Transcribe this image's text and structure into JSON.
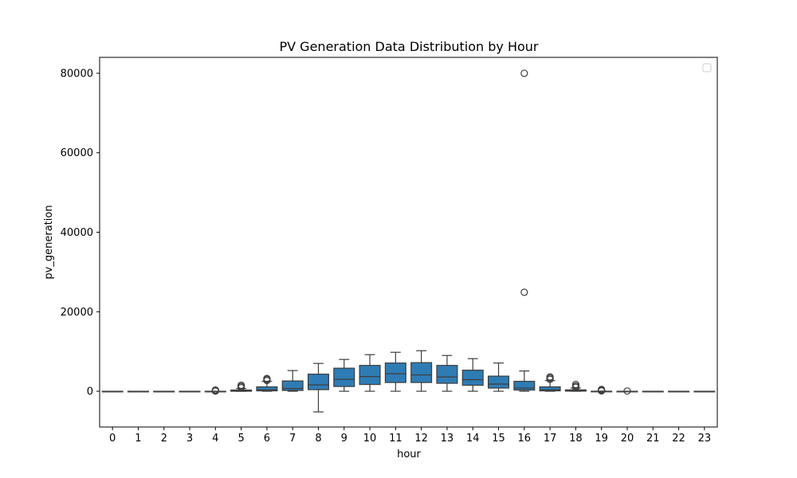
{
  "chart_data": {
    "type": "box",
    "title": "PV Generation Data Distribution by Hour",
    "xlabel": "hour",
    "ylabel": "pv_generation",
    "ylim": [
      -9000,
      84000
    ],
    "yticks": [
      0,
      20000,
      40000,
      60000,
      80000
    ],
    "grid": false,
    "legend": "top-right",
    "colors": {
      "box": "#2f7cb4",
      "line": "#3d3d3d"
    },
    "categories": [
      "0",
      "1",
      "2",
      "3",
      "4",
      "5",
      "6",
      "7",
      "8",
      "9",
      "10",
      "11",
      "12",
      "13",
      "14",
      "15",
      "16",
      "17",
      "18",
      "19",
      "20",
      "21",
      "22",
      "23"
    ],
    "boxes": [
      {
        "hour": "0",
        "whislo": 0,
        "q1": 0,
        "med": 0,
        "q3": 0,
        "whishi": 0,
        "fliers": []
      },
      {
        "hour": "1",
        "whislo": 0,
        "q1": 0,
        "med": 0,
        "q3": 0,
        "whishi": 0,
        "fliers": []
      },
      {
        "hour": "2",
        "whislo": 0,
        "q1": 0,
        "med": 0,
        "q3": 0,
        "whishi": 0,
        "fliers": []
      },
      {
        "hour": "3",
        "whislo": 0,
        "q1": 0,
        "med": 0,
        "q3": 0,
        "whishi": 0,
        "fliers": []
      },
      {
        "hour": "4",
        "whislo": 0,
        "q1": 0,
        "med": 0,
        "q3": 0,
        "whishi": 0,
        "fliers": [
          50,
          120,
          200,
          300
        ]
      },
      {
        "hour": "5",
        "whislo": 0,
        "q1": 0,
        "med": 120,
        "q3": 300,
        "whishi": 700,
        "fliers": [
          900,
          1200,
          1500
        ]
      },
      {
        "hour": "6",
        "whislo": 0,
        "q1": 100,
        "med": 350,
        "q3": 1100,
        "whishi": 2500,
        "fliers": [
          2700,
          3000,
          3200
        ]
      },
      {
        "hour": "7",
        "whislo": 0,
        "q1": 200,
        "med": 700,
        "q3": 2600,
        "whishi": 5200,
        "fliers": []
      },
      {
        "hour": "8",
        "whislo": -5200,
        "q1": 400,
        "med": 1600,
        "q3": 4300,
        "whishi": 7000,
        "fliers": []
      },
      {
        "hour": "9",
        "whislo": 0,
        "q1": 1200,
        "med": 3000,
        "q3": 5800,
        "whishi": 8000,
        "fliers": []
      },
      {
        "hour": "10",
        "whislo": 0,
        "q1": 1700,
        "med": 3700,
        "q3": 6500,
        "whishi": 9200,
        "fliers": []
      },
      {
        "hour": "11",
        "whislo": 0,
        "q1": 2200,
        "med": 4400,
        "q3": 7100,
        "whishi": 9800,
        "fliers": []
      },
      {
        "hour": "12",
        "whislo": 0,
        "q1": 2200,
        "med": 4100,
        "q3": 7200,
        "whishi": 10200,
        "fliers": []
      },
      {
        "hour": "13",
        "whislo": 0,
        "q1": 2000,
        "med": 3600,
        "q3": 6500,
        "whishi": 9000,
        "fliers": []
      },
      {
        "hour": "14",
        "whislo": 0,
        "q1": 1500,
        "med": 2900,
        "q3": 5300,
        "whishi": 8200,
        "fliers": []
      },
      {
        "hour": "15",
        "whislo": 0,
        "q1": 800,
        "med": 1800,
        "q3": 3800,
        "whishi": 7100,
        "fliers": []
      },
      {
        "hour": "16",
        "whislo": 0,
        "q1": 300,
        "med": 800,
        "q3": 2500,
        "whishi": 5100,
        "fliers": [
          24900,
          80000
        ]
      },
      {
        "hour": "17",
        "whislo": 0,
        "q1": 100,
        "med": 350,
        "q3": 1100,
        "whishi": 2700,
        "fliers": [
          3000,
          3300,
          3600
        ]
      },
      {
        "hour": "18",
        "whislo": 0,
        "q1": 30,
        "med": 120,
        "q3": 350,
        "whishi": 800,
        "fliers": [
          1000,
          1300,
          1700
        ]
      },
      {
        "hour": "19",
        "whislo": 0,
        "q1": 0,
        "med": 0,
        "q3": 10,
        "whishi": 30,
        "fliers": [
          100,
          250,
          450
        ]
      },
      {
        "hour": "20",
        "whislo": 0,
        "q1": 0,
        "med": 0,
        "q3": 0,
        "whishi": 0,
        "fliers": [
          60
        ]
      },
      {
        "hour": "21",
        "whislo": 0,
        "q1": 0,
        "med": 0,
        "q3": 0,
        "whishi": 0,
        "fliers": []
      },
      {
        "hour": "22",
        "whislo": 0,
        "q1": 0,
        "med": 0,
        "q3": 0,
        "whishi": 0,
        "fliers": []
      },
      {
        "hour": "23",
        "whislo": 0,
        "q1": 0,
        "med": 0,
        "q3": 0,
        "whishi": 0,
        "fliers": []
      }
    ]
  }
}
